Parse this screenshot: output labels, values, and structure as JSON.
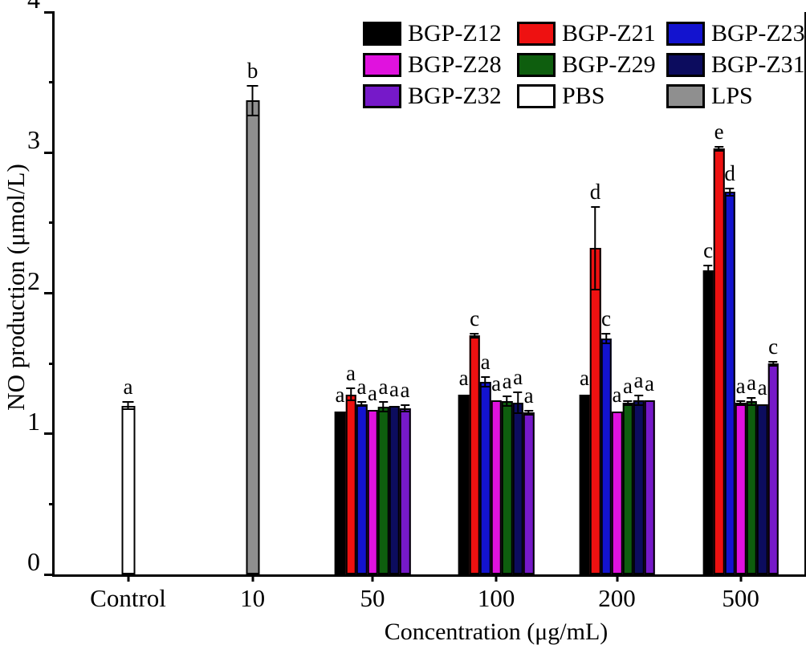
{
  "figure": {
    "background": "#ffffff",
    "axis_color": "#000000"
  },
  "chart_data": {
    "type": "bar",
    "title": "",
    "xlabel": "Concentration (μg/mL)",
    "ylabel": "NO production (μmol/L)",
    "ylim": [
      0,
      4
    ],
    "yticks": [
      0,
      1,
      2,
      3,
      4
    ],
    "yminorticks": [
      0.5,
      1.5,
      2.5,
      3.5
    ],
    "grid": false,
    "legend_position": "top-right-inside",
    "categories": [
      "Control",
      "10",
      "50",
      "100",
      "200",
      "500"
    ],
    "category_centers_pct": [
      9.8,
      26.4,
      42.4,
      58.9,
      75.0,
      91.5
    ],
    "series": [
      {
        "name": "BGP-Z12",
        "color": "#000000",
        "values": [
          null,
          null,
          1.16,
          1.28,
          1.28,
          2.16
        ],
        "errors": [
          null,
          null,
          0.01,
          0.01,
          0.01,
          0.04
        ],
        "letters": [
          null,
          null,
          "a",
          "a",
          "a",
          "c"
        ]
      },
      {
        "name": "BGP-Z21",
        "color": "#EE1111",
        "values": [
          null,
          null,
          1.28,
          1.7,
          2.32,
          3.03
        ],
        "errors": [
          null,
          null,
          0.05,
          0.02,
          0.3,
          0.02
        ],
        "letters": [
          null,
          null,
          "a",
          "c",
          "d",
          "e"
        ]
      },
      {
        "name": "BGP-Z23",
        "color": "#1313CF",
        "values": [
          null,
          null,
          1.21,
          1.37,
          1.68,
          2.72
        ],
        "errors": [
          null,
          null,
          0.02,
          0.04,
          0.04,
          0.03
        ],
        "letters": [
          null,
          null,
          "a",
          "a",
          "c",
          "d"
        ]
      },
      {
        "name": "BGP-Z28",
        "color": "#E012DE",
        "values": [
          null,
          null,
          1.17,
          1.24,
          1.16,
          1.22
        ],
        "errors": [
          null,
          null,
          0.01,
          0.01,
          0.01,
          0.02
        ],
        "letters": [
          null,
          null,
          "a",
          "a",
          "a",
          "a"
        ]
      },
      {
        "name": "BGP-Z29",
        "color": "#0E5E0E",
        "values": [
          null,
          null,
          1.19,
          1.23,
          1.22,
          1.23
        ],
        "errors": [
          null,
          null,
          0.04,
          0.04,
          0.02,
          0.03
        ],
        "letters": [
          null,
          null,
          "a",
          "a",
          "a",
          "a"
        ]
      },
      {
        "name": "BGP-Z31",
        "color": "#0C0C5E",
        "values": [
          null,
          null,
          1.2,
          1.22,
          1.24,
          1.21
        ],
        "errors": [
          null,
          null,
          0.01,
          0.08,
          0.04,
          0.01
        ],
        "letters": [
          null,
          null,
          "a",
          "a",
          "a",
          "a"
        ]
      },
      {
        "name": "BGP-Z32",
        "color": "#7619C9",
        "values": [
          null,
          null,
          1.18,
          1.15,
          1.24,
          1.5
        ],
        "errors": [
          null,
          null,
          0.03,
          0.02,
          0.01,
          0.02
        ],
        "letters": [
          null,
          null,
          "a",
          "a",
          "a",
          "c"
        ]
      },
      {
        "name": "PBS",
        "color": "#FFFFFF",
        "values": [
          1.2,
          null,
          null,
          null,
          null,
          null
        ],
        "errors": [
          0.03,
          null,
          null,
          null,
          null,
          null
        ],
        "letters": [
          "a",
          null,
          null,
          null,
          null,
          null
        ]
      },
      {
        "name": "LPS",
        "color": "#8F8F8F",
        "values": [
          null,
          3.37,
          null,
          null,
          null,
          null
        ],
        "errors": [
          null,
          0.11,
          null,
          null,
          null,
          null
        ],
        "letters": [
          null,
          "b",
          null,
          null,
          null,
          null
        ]
      }
    ],
    "legend_order": [
      "BGP-Z12",
      "BGP-Z21",
      "BGP-Z23",
      "BGP-Z28",
      "BGP-Z29",
      "BGP-Z31",
      "BGP-Z32",
      "PBS",
      "LPS"
    ]
  }
}
